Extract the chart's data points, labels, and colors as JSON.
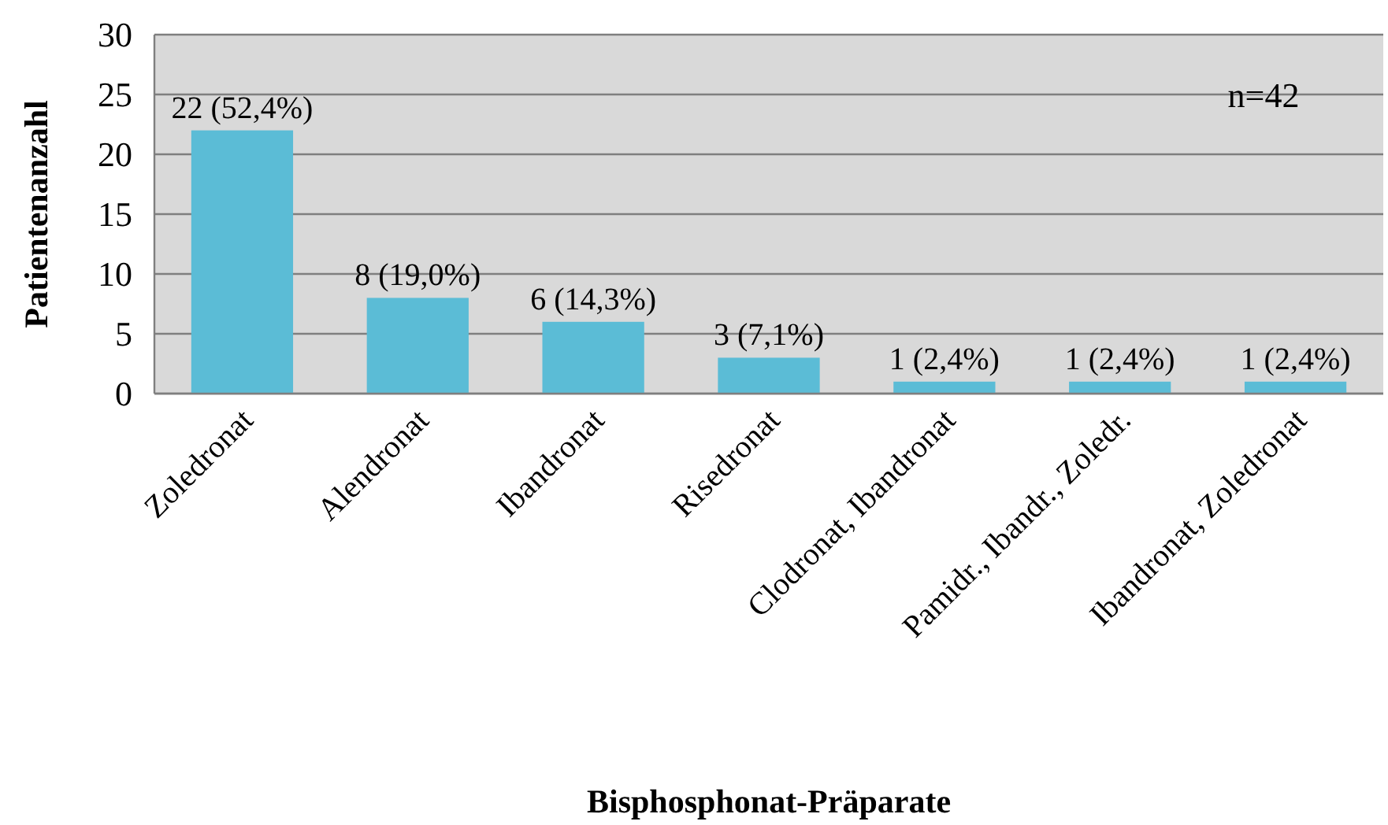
{
  "chart_data": {
    "type": "bar",
    "xlabel": "Bisphosphonat-Präparate",
    "ylabel": "Patientenanzahl",
    "categories": [
      "Zoledronat",
      "Alendronat",
      "Ibandronat",
      "Risedronat",
      "Clodronat, Ibandronat",
      "Pamidr., Ibandr., Zoledr.",
      "Ibandronat, Zoledronat"
    ],
    "values": [
      22,
      8,
      6,
      3,
      1,
      1,
      1
    ],
    "value_labels": [
      "22 (52,4%)",
      "8 (19,0%)",
      "6 (14,3%)",
      "3 (7,1%)",
      "1 (2,4%)",
      "1 (2,4%)",
      "1 (2,4%)"
    ],
    "color": "#5bbcd6",
    "ylim": [
      0,
      30
    ],
    "yticks": [
      0,
      5,
      10,
      15,
      20,
      25,
      30
    ],
    "grid": "y",
    "annotations": [
      "n=42"
    ]
  }
}
